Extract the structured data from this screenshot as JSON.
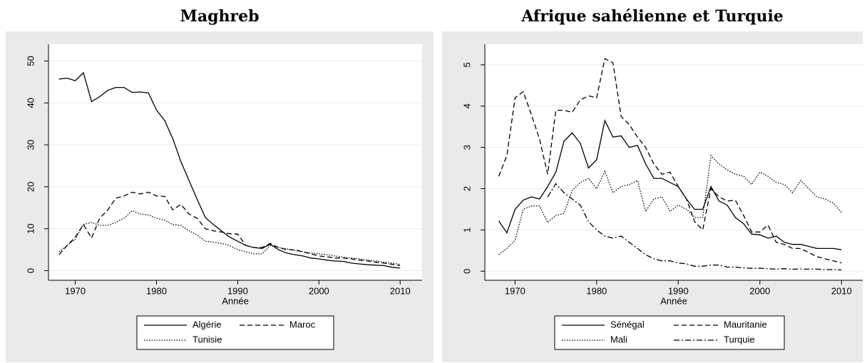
{
  "chart_data": [
    {
      "type": "line",
      "title": "Maghreb",
      "x_label": "Année",
      "x": [
        1968,
        1969,
        1970,
        1971,
        1972,
        1973,
        1974,
        1975,
        1976,
        1977,
        1978,
        1979,
        1980,
        1981,
        1982,
        1983,
        1984,
        1985,
        1986,
        1987,
        1988,
        1989,
        1990,
        1991,
        1992,
        1993,
        1994,
        1995,
        1996,
        1997,
        1998,
        1999,
        2000,
        2001,
        2002,
        2003,
        2004,
        2005,
        2006,
        2007,
        2008,
        2009,
        2010
      ],
      "xlim": [
        1966.7,
        2012.7
      ],
      "xticks": [
        1970,
        1980,
        1990,
        2000,
        2010
      ],
      "ylim": [
        -2.3,
        54
      ],
      "yticks": [
        0,
        10,
        20,
        30,
        40,
        50
      ],
      "grid": true,
      "series": [
        {
          "name": "Algérie",
          "color": "#000000",
          "dash": "none",
          "values": [
            45.7,
            45.9,
            45.3,
            47.2,
            40.3,
            41.5,
            43,
            43.7,
            43.7,
            42.5,
            42.6,
            42.4,
            38.3,
            35.8,
            31.5,
            26,
            21.5,
            17,
            12.7,
            11,
            9.5,
            8,
            7,
            6,
            5.5,
            5.3,
            6.3,
            5,
            4.2,
            3.8,
            3.5,
            3,
            2.8,
            2.5,
            2.3,
            2.2,
            1.8,
            1.6,
            1.4,
            1.3,
            1.2,
            0.8,
            0.6
          ]
        },
        {
          "name": "Maroc",
          "color": "#000000",
          "dash": "7 4",
          "values": [
            3.8,
            6,
            8,
            11,
            7.8,
            12.5,
            14.5,
            17.3,
            17.8,
            18.7,
            18.3,
            18.7,
            17.8,
            17.7,
            14.5,
            15.8,
            13.5,
            12.5,
            10,
            9.5,
            9.2,
            8.8,
            8.7,
            6,
            5.5,
            5.5,
            6.5,
            5.5,
            5,
            5,
            4.5,
            4,
            3.5,
            3.3,
            3,
            3,
            2.8,
            2.5,
            2.3,
            2,
            1.8,
            1.5,
            1.2
          ]
        },
        {
          "name": "Tunisie",
          "color": "#000000",
          "dash": "1.5 2",
          "values": [
            4.5,
            6,
            7.5,
            11,
            11.5,
            10.8,
            10.8,
            11.5,
            12.5,
            14.3,
            13.5,
            13.3,
            12.5,
            12,
            11,
            10.8,
            9.5,
            8.5,
            7,
            6.8,
            6.5,
            6,
            5,
            4.5,
            4,
            4,
            6,
            5.5,
            5.2,
            4.8,
            4.5,
            4.2,
            4,
            3.8,
            3.5,
            3.2,
            3,
            2.8,
            2.5,
            2.3,
            2,
            1.8,
            1.5
          ]
        }
      ]
    },
    {
      "type": "line",
      "title": "Afrique sahélienne et Turquie",
      "x_label": "Année",
      "x": [
        1968,
        1969,
        1970,
        1971,
        1972,
        1973,
        1974,
        1975,
        1976,
        1977,
        1978,
        1979,
        1980,
        1981,
        1982,
        1983,
        1984,
        1985,
        1986,
        1987,
        1988,
        1989,
        1990,
        1991,
        1992,
        1993,
        1994,
        1995,
        1996,
        1997,
        1998,
        1999,
        2000,
        2001,
        2002,
        2003,
        2004,
        2005,
        2006,
        2007,
        2008,
        2009,
        2010
      ],
      "xlim": [
        1966.3,
        2012.6
      ],
      "xticks": [
        1970,
        1980,
        1990,
        2000,
        2010
      ],
      "ylim": [
        -0.22,
        5.5
      ],
      "yticks": [
        0,
        1,
        2,
        3,
        4,
        5
      ],
      "grid": true,
      "series": [
        {
          "name": "Sénégal",
          "color": "#000000",
          "dash": "none",
          "values": [
            1.22,
            0.93,
            1.5,
            1.72,
            1.8,
            1.75,
            2.05,
            2.4,
            3.15,
            3.35,
            3.1,
            2.5,
            2.7,
            3.65,
            3.25,
            3.28,
            3.0,
            3.05,
            2.6,
            2.25,
            2.25,
            2.15,
            2.05,
            1.75,
            1.5,
            1.5,
            2.05,
            1.7,
            1.6,
            1.3,
            1.15,
            0.9,
            0.88,
            0.8,
            0.85,
            0.7,
            0.65,
            0.65,
            0.6,
            0.55,
            0.55,
            0.55,
            0.52
          ]
        },
        {
          "name": "Mauritanie",
          "color": "#000000",
          "dash": "7 4",
          "values": [
            2.3,
            2.8,
            4.2,
            4.35,
            3.8,
            3.2,
            2.35,
            3.9,
            3.9,
            3.85,
            4.15,
            4.25,
            4.2,
            5.15,
            5.05,
            3.75,
            3.55,
            3.25,
            3.0,
            2.6,
            2.35,
            2.4,
            2.05,
            1.75,
            1.2,
            1.0,
            2.0,
            1.8,
            1.7,
            1.72,
            1.35,
            0.95,
            0.95,
            1.12,
            0.7,
            0.65,
            0.55,
            0.55,
            0.45,
            0.35,
            0.3,
            0.25,
            0.2
          ]
        },
        {
          "name": "Mali",
          "color": "#000000",
          "dash": "1.5 2",
          "values": [
            0.4,
            0.55,
            0.75,
            1.5,
            1.58,
            1.58,
            1.18,
            1.35,
            1.4,
            1.95,
            2.15,
            2.25,
            2.0,
            2.42,
            1.9,
            2.05,
            2.1,
            2.2,
            1.45,
            1.75,
            1.8,
            1.45,
            1.6,
            1.5,
            1.3,
            1.3,
            2.8,
            2.6,
            2.45,
            2.35,
            2.3,
            2.1,
            2.4,
            2.3,
            2.15,
            2.1,
            1.9,
            2.2,
            2.0,
            1.8,
            1.75,
            1.65,
            1.42
          ]
        },
        {
          "name": "Turquie",
          "color": "#000000",
          "dash": "8 3 2 3",
          "values": [
            null,
            null,
            null,
            null,
            null,
            null,
            1.8,
            2.12,
            1.9,
            1.75,
            1.6,
            1.2,
            1.0,
            0.85,
            0.8,
            0.85,
            0.7,
            0.55,
            0.4,
            0.3,
            0.25,
            0.25,
            0.2,
            0.18,
            0.12,
            0.12,
            0.15,
            0.15,
            0.1,
            0.1,
            0.08,
            0.07,
            0.07,
            0.06,
            0.05,
            0.06,
            0.05,
            0.05,
            0.05,
            0.05,
            0.04,
            0.04,
            0.03
          ]
        }
      ]
    }
  ]
}
